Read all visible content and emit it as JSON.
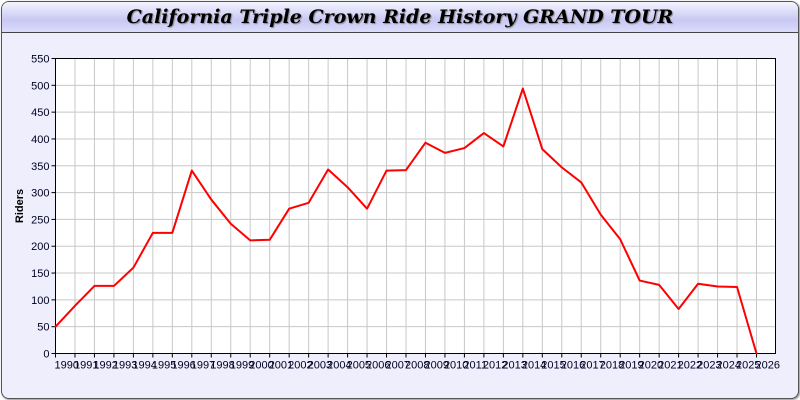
{
  "chart_data": {
    "type": "line",
    "title": "California Triple Crown Ride History GRAND TOUR",
    "xlabel": "",
    "ylabel": "Riders",
    "ylim": [
      0,
      550
    ],
    "yticks": [
      0,
      50,
      100,
      150,
      200,
      250,
      300,
      350,
      400,
      450,
      500,
      550
    ],
    "grid": true,
    "line_color": "#ff0000",
    "categories": [
      "1990",
      "1991",
      "1992",
      "1993",
      "1994",
      "1995",
      "1996",
      "1997",
      "1998",
      "1999",
      "2000",
      "2001",
      "2002",
      "2003",
      "2004",
      "2005",
      "2006",
      "2007",
      "2008",
      "2009",
      "2010",
      "2011",
      "2012",
      "2013",
      "2014",
      "2015",
      "2016",
      "2017",
      "2018",
      "2019",
      "2020",
      "2021",
      "2022",
      "2023",
      "2024",
      "2025",
      "2026"
    ],
    "series": [
      {
        "values": [
          50,
          89,
          126,
          126,
          160,
          225,
          225,
          341,
          287,
          242,
          211,
          212,
          270,
          281,
          343,
          310,
          270,
          341,
          342,
          393,
          374,
          383,
          411,
          386,
          494,
          381,
          347,
          319,
          259,
          213,
          136,
          128,
          83,
          130,
          125,
          124,
          0
        ]
      }
    ]
  }
}
